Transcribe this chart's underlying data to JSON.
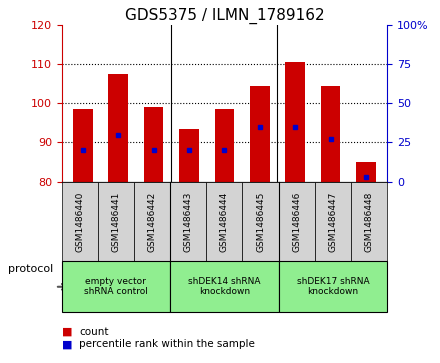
{
  "title": "GDS5375 / ILMN_1789162",
  "samples": [
    "GSM1486440",
    "GSM1486441",
    "GSM1486442",
    "GSM1486443",
    "GSM1486444",
    "GSM1486445",
    "GSM1486446",
    "GSM1486447",
    "GSM1486448"
  ],
  "count_values": [
    98.5,
    107.5,
    99.0,
    93.5,
    98.5,
    104.5,
    110.5,
    104.5,
    85.0
  ],
  "percentile_values": [
    20,
    30,
    20,
    20,
    20,
    35,
    35,
    27,
    3
  ],
  "ylim_left": [
    80,
    120
  ],
  "ylim_right": [
    0,
    100
  ],
  "yticks_left": [
    80,
    90,
    100,
    110,
    120
  ],
  "yticks_right": [
    0,
    25,
    50,
    75,
    100
  ],
  "bar_color": "#cc0000",
  "dot_color": "#0000cc",
  "bar_bottom": 80,
  "groups": [
    {
      "label": "empty vector\nshRNA control",
      "start": 0,
      "end": 3
    },
    {
      "label": "shDEK14 shRNA\nknockdown",
      "start": 3,
      "end": 6
    },
    {
      "label": "shDEK17 shRNA\nknockdown",
      "start": 6,
      "end": 9
    }
  ],
  "group_dividers": [
    3,
    6
  ],
  "legend_count_label": "count",
  "legend_pct_label": "percentile rank within the sample",
  "protocol_label": "protocol",
  "left_axis_color": "#cc0000",
  "right_axis_color": "#0000cc",
  "title_fontsize": 11,
  "tick_fontsize": 8,
  "bar_width": 0.55,
  "sample_box_color": "#d3d3d3",
  "group_box_color": "#90ee90",
  "grid_lines": [
    90,
    100,
    110
  ]
}
